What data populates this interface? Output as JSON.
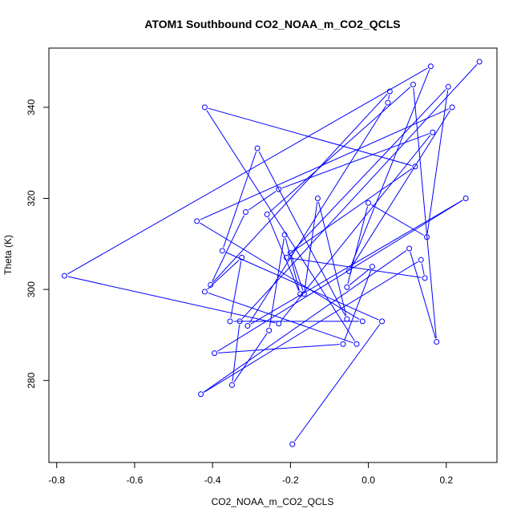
{
  "chart_data": {
    "type": "line",
    "title": "ATOM1 Southbound CO2_NOAA_m_CO2_QCLS",
    "xlabel": "CO2_NOAA_m_CO2_QCLS",
    "ylabel": "Theta (K)",
    "xlim": [
      -0.82,
      0.33
    ],
    "ylim": [
      262,
      353
    ],
    "x_ticks": [
      -0.8,
      -0.6,
      -0.4,
      -0.2,
      0.0,
      0.2
    ],
    "x_tick_labels": [
      "-0.8",
      "-0.6",
      "-0.4",
      "-0.2",
      "0.0",
      "0.2"
    ],
    "y_ticks": [
      280,
      300,
      320,
      340
    ],
    "y_tick_labels": [
      "280",
      "300",
      "320",
      "340"
    ],
    "series": [
      {
        "name": "CO2_NOAA_m_CO2_QCLS",
        "color": "#0000ff",
        "marker": "open-circle",
        "x": [
          -0.195,
          0.035,
          -0.375,
          -0.285,
          -0.055,
          -0.13,
          -0.165,
          -0.2,
          0.12,
          -0.42,
          -0.03,
          -0.42,
          -0.325,
          -0.355,
          -0.015,
          -0.44,
          0.215,
          -0.05,
          0.16,
          -0.78,
          -0.23,
          0.165,
          -0.23,
          -0.315,
          -0.405,
          0.055,
          0.05,
          -0.31,
          0.25,
          -0.395,
          -0.065,
          0.01,
          -0.055,
          0.0,
          0.15,
          0.205,
          -0.21,
          0.145,
          0.135,
          -0.43,
          0.105,
          0.175,
          0.115,
          -0.26,
          -0.175,
          -0.215,
          -0.255,
          -0.35,
          -0.33,
          0.285
        ],
        "y": [
          266,
          293,
          308.5,
          331,
          293.5,
          320,
          299,
          308,
          327,
          340,
          288,
          299.5,
          307,
          293,
          293,
          315,
          340,
          304,
          349,
          303,
          292.5,
          334.5,
          322,
          317,
          301,
          343.5,
          341,
          292,
          320,
          286,
          288,
          305,
          300.5,
          319,
          311.5,
          344.5,
          307,
          302.5,
          306.5,
          277,
          309,
          288.5,
          345,
          316.5,
          299,
          312,
          291,
          279,
          293,
          350
        ]
      }
    ]
  }
}
